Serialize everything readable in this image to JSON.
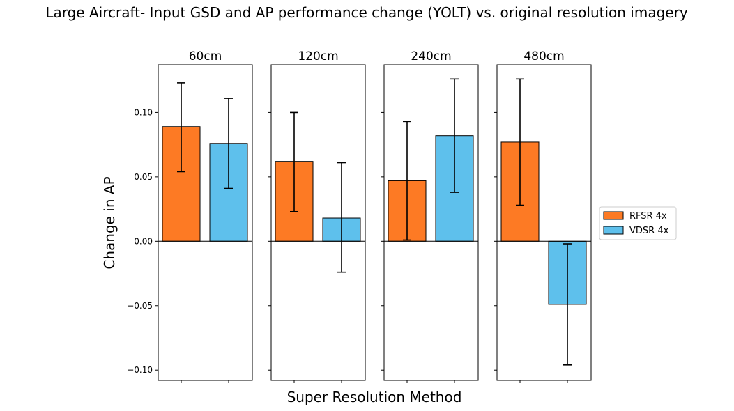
{
  "chart_data": {
    "type": "bar",
    "title": "Large Aircraft- Input GSD and AP performance change (YOLT) vs. original resolution imagery",
    "xlabel": "Super Resolution Method",
    "ylabel": "Change in AP",
    "ylim": [
      -0.108,
      0.137
    ],
    "yticks": [
      0.1,
      0.05,
      0.0,
      -0.05,
      -0.1
    ],
    "ytick_labels": [
      "0.10",
      "0.05",
      "0.00",
      "−0.05",
      "−0.10"
    ],
    "grid": false,
    "legend_position": "right",
    "colors": {
      "RFSR 4x": "#fd7a24",
      "VDSR 4x": "#5ec0ec"
    },
    "series": [
      {
        "name": "RFSR 4x",
        "color": "#fd7a24"
      },
      {
        "name": "VDSR 4x",
        "color": "#5ec0ec"
      }
    ],
    "panels": [
      {
        "title": "60cm",
        "values": [
          0.089,
          0.076
        ],
        "err_low": [
          0.054,
          0.041
        ],
        "err_high": [
          0.123,
          0.111
        ]
      },
      {
        "title": "120cm",
        "values": [
          0.062,
          0.018
        ],
        "err_low": [
          0.023,
          -0.024
        ],
        "err_high": [
          0.1,
          0.061
        ]
      },
      {
        "title": "240cm",
        "values": [
          0.047,
          0.082
        ],
        "err_low": [
          0.001,
          0.038
        ],
        "err_high": [
          0.093,
          0.126
        ]
      },
      {
        "title": "480cm",
        "values": [
          0.077,
          -0.049
        ],
        "err_low": [
          0.028,
          -0.096
        ],
        "err_high": [
          0.126,
          -0.002
        ]
      }
    ]
  }
}
